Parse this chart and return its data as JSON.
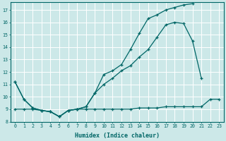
{
  "xlabel": "Humidex (Indice chaleur)",
  "bg_color": "#cce8e8",
  "grid_color": "#b0d0d0",
  "line_color": "#006666",
  "xlim": [
    -0.5,
    23.5
  ],
  "ylim": [
    8.0,
    17.6
  ],
  "yticks": [
    8,
    9,
    10,
    11,
    12,
    13,
    14,
    15,
    16,
    17
  ],
  "xticks": [
    0,
    1,
    2,
    3,
    4,
    5,
    6,
    7,
    8,
    9,
    10,
    11,
    12,
    13,
    14,
    15,
    16,
    17,
    18,
    19,
    20,
    21,
    22,
    23
  ],
  "line1_x": [
    0,
    1,
    2,
    3,
    4,
    5,
    6,
    7,
    8,
    9,
    10,
    11,
    12,
    13,
    14,
    15,
    16,
    17,
    18,
    19,
    20
  ],
  "line1_y": [
    11.2,
    9.8,
    9.1,
    8.9,
    8.8,
    8.4,
    8.9,
    9.0,
    9.2,
    10.3,
    11.8,
    12.1,
    12.6,
    13.8,
    15.1,
    16.3,
    16.6,
    17.0,
    17.2,
    17.4,
    17.5
  ],
  "line2_x": [
    0,
    1,
    2,
    3,
    4,
    5,
    6,
    7,
    8,
    9,
    10,
    11,
    12,
    13,
    14,
    15,
    16,
    17,
    18,
    19,
    20,
    21
  ],
  "line2_y": [
    11.2,
    9.8,
    9.1,
    8.9,
    8.8,
    8.4,
    8.9,
    9.0,
    9.2,
    10.3,
    11.0,
    11.5,
    12.1,
    12.5,
    13.2,
    13.8,
    14.8,
    15.8,
    16.0,
    15.9,
    14.5,
    11.5
  ],
  "line3_x": [
    0,
    1,
    2,
    3,
    4,
    5,
    6,
    7,
    8,
    9,
    10,
    11,
    12,
    13,
    14,
    15,
    16,
    17,
    18,
    19,
    20,
    21,
    22,
    23
  ],
  "line3_y": [
    9.0,
    9.0,
    9.0,
    8.9,
    8.8,
    8.4,
    8.9,
    9.0,
    9.0,
    9.0,
    9.0,
    9.0,
    9.0,
    9.0,
    9.1,
    9.1,
    9.1,
    9.2,
    9.2,
    9.2,
    9.2,
    9.2,
    9.8,
    9.8
  ]
}
